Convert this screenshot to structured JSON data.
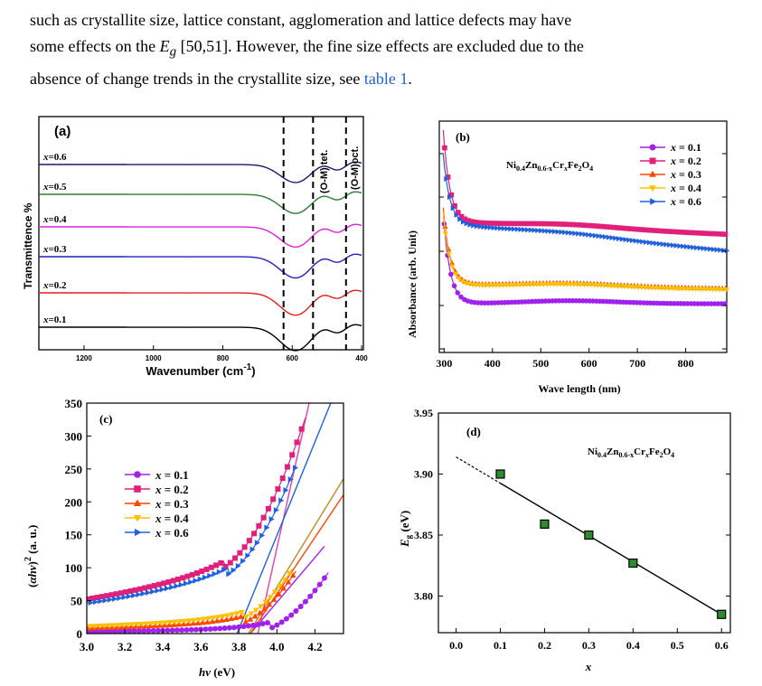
{
  "paragraph": {
    "line1": "such as  crystallite size, lattice constant, agglomeration and lattice defects may have",
    "line2_a": "some effects on the ",
    "line2_sym": "E",
    "line2_sub": "g",
    "line2_b": " [50,51]. However, the fine size effects are excluded due to the",
    "line3_a": " absence of change trends in the crystallite size, see ",
    "line3_link": "table 1",
    "line3_b": "."
  },
  "panel_a": {
    "chart_data": {
      "type": "line",
      "panel_label": "(a)",
      "xlabel": "Wavenumber (cm",
      "xlabel_sup": "-1",
      "xlabel_end": ")",
      "ylabel": "Transmittence %",
      "xlim": [
        1330,
        395
      ],
      "xticks": [
        1200,
        1000,
        800,
        600,
        400
      ],
      "dashed_lines_x": [
        625,
        540,
        445
      ],
      "annotation_tet": "(O-M) tet.",
      "annotation_oct": "(O-M)oct.",
      "series": [
        {
          "name": "x=0.6",
          "prefix": "x",
          "rest": "=0.6",
          "color": "#1a1a6e",
          "offset": 190
        },
        {
          "name": "x=0.5",
          "prefix": "x",
          "rest": "=0.5",
          "color": "#2e7d2e",
          "offset": 157
        },
        {
          "name": "x=0.4",
          "prefix": "x",
          "rest": "=0.4",
          "color": "#e020e0",
          "offset": 121
        },
        {
          "name": "x=0.3",
          "prefix": "x",
          "rest": "=0.3",
          "color": "#2020c0",
          "offset": 88
        },
        {
          "name": "x=0.2",
          "prefix": "x",
          "rest": "=0.2",
          "color": "#e02020",
          "offset": 48
        },
        {
          "name": "x=0.1",
          "prefix": "x",
          "rest": "=0.1",
          "color": "#000000",
          "offset": 10
        }
      ]
    }
  },
  "panel_b": {
    "chart_data": {
      "type": "line",
      "panel_label": "(b)",
      "formula": {
        "t1": "Ni",
        "s1": "0.4",
        "t2": "Zn",
        "s2": "0.6-x",
        "t3": "Cr",
        "s3": "x",
        "t4": "Fe",
        "s4": "2",
        "t5": "O",
        "s5": "4"
      },
      "xlabel": "Wave length (nm)",
      "ylabel": "Absorbance (arb. Unit)",
      "xlim": [
        290,
        885
      ],
      "ylim": [
        0,
        1
      ],
      "xticks": [
        300,
        400,
        500,
        600,
        700,
        800
      ],
      "series": [
        {
          "name": "x = 0.1",
          "label_x": "x",
          "label_rest": " = 0.1",
          "color": "#a020f0",
          "marker": "circle",
          "plateau": 0.15,
          "slope": 0.0,
          "start": 0.6
        },
        {
          "name": "x = 0.2",
          "label_x": "x",
          "label_rest": " = 0.2",
          "color": "#e0207a",
          "marker": "square",
          "plateau": 0.55,
          "slope": -0.06,
          "start": 1.0
        },
        {
          "name": "x = 0.3",
          "label_x": "x",
          "label_rest": " = 0.3",
          "color": "#ff4500",
          "marker": "triangle-up",
          "plateau": 0.245,
          "slope": -0.02,
          "start": 0.62
        },
        {
          "name": "x = 0.4",
          "label_x": "x",
          "label_rest": " = 0.4",
          "color": "#ffc000",
          "marker": "triangle-down",
          "plateau": 0.24,
          "slope": -0.02,
          "start": 0.6
        },
        {
          "name": "x = 0.6",
          "label_x": "x",
          "label_rest": " = 0.6",
          "color": "#1e60e0",
          "marker": "triangle-right",
          "plateau": 0.54,
          "slope": -0.13,
          "start": 0.88
        }
      ]
    }
  },
  "panel_c": {
    "chart_data": {
      "type": "line",
      "panel_label": "(c)",
      "xlabel_h": "h",
      "xlabel_nu": "ν",
      "xlabel_rest": " (eV)",
      "ylabel_open": "(",
      "ylabel_alpha": "α",
      "ylabel_hnu": "hν",
      "ylabel_close": ")",
      "ylabel_sup": "2",
      "ylabel_unit": " (a. u.)",
      "xlim": [
        3.0,
        4.35
      ],
      "ylim": [
        0,
        350
      ],
      "xticks": [
        "3.0",
        "3.2",
        "3.4",
        "3.6",
        "3.8",
        "4.0",
        "4.2"
      ],
      "yticks": [
        "0",
        "50",
        "100",
        "150",
        "200",
        "250",
        "300",
        "350"
      ],
      "series": [
        {
          "name": "x = 0.1",
          "label_x": "x",
          "label_rest": " = 0.1",
          "color": "#a020f0",
          "marker": "circle",
          "y0": 3,
          "E": 3.96,
          "k": 480,
          "xmax": 4.27,
          "fit": [
            3.86,
            4.25
          ],
          "fitk": 340
        },
        {
          "name": "x = 0.2",
          "label_x": "x",
          "label_rest": " = 0.2",
          "color": "#e0207a",
          "marker": "square",
          "y0": 52,
          "E": 3.72,
          "k": 700,
          "xmax": 4.15,
          "fit": [
            3.9,
            4.17
          ],
          "fitk": 1300
        },
        {
          "name": "x = 0.3",
          "label_x": "x",
          "label_rest": " = 0.3",
          "color": "#ff4500",
          "marker": "triangle-up",
          "y0": 8,
          "E": 3.83,
          "k": 560,
          "xmax": 4.1,
          "fit": [
            3.86,
            4.35
          ],
          "fitk": 430
        },
        {
          "name": "x = 0.4",
          "label_x": "x",
          "label_rest": " = 0.4",
          "color": "#ffc000",
          "marker": "triangle-down",
          "y0": 11,
          "E": 3.82,
          "k": 560,
          "xmax": 4.08,
          "fit": [
            3.85,
            4.35
          ],
          "fitk": 470
        },
        {
          "name": "x = 0.6",
          "label_x": "x",
          "label_rest": " = 0.6",
          "color": "#1e60e0",
          "marker": "triangle-right",
          "y0": 46,
          "E": 3.74,
          "k": 680,
          "xmax": 4.1,
          "fit": [
            3.79,
            4.3
          ],
          "fitk": 710
        }
      ],
      "pink_fit_color": "#e83fb0",
      "olive_fit_color": "#c08a20"
    }
  },
  "panel_d": {
    "chart_data": {
      "type": "scatter",
      "panel_label": "(d)",
      "formula": {
        "t1": "Ni",
        "s1": "0.4",
        "t2": "Zn",
        "s2": "0.6-x",
        "t3": "Cr",
        "s3": "x",
        "t4": "Fe",
        "s4": "2",
        "t5": "O",
        "s5": "4"
      },
      "xlabel": "x",
      "ylabel_E": "E",
      "ylabel_sub": "g",
      "ylabel_unit": " (eV)",
      "xlim": [
        -0.04,
        0.62
      ],
      "ylim": [
        3.77,
        3.95
      ],
      "xticks": [
        "0.0",
        "0.1",
        "0.2",
        "0.3",
        "0.4",
        "0.5",
        "0.6"
      ],
      "yticks": [
        "3.80",
        "3.85",
        "3.90",
        "3.95"
      ],
      "points": [
        {
          "x": 0.1,
          "y": 3.9
        },
        {
          "x": 0.2,
          "y": 3.859
        },
        {
          "x": 0.3,
          "y": 3.85
        },
        {
          "x": 0.4,
          "y": 3.827
        },
        {
          "x": 0.6,
          "y": 3.785
        }
      ],
      "fit_line": {
        "x0": 0.0,
        "y0": 3.914,
        "x1": 0.6,
        "y1": 3.785,
        "dash_until": 0.1
      },
      "marker_color": "#2e8b2e"
    }
  }
}
